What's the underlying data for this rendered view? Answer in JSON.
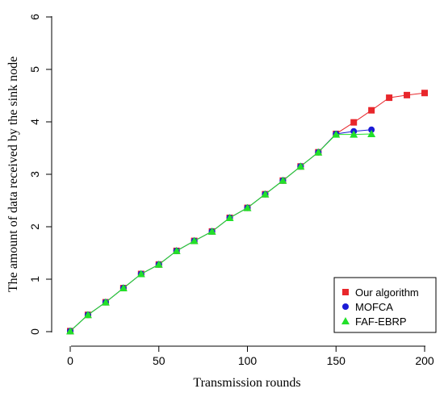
{
  "chart_data": {
    "type": "line",
    "xlabel": "Transmission rounds",
    "ylabel": "The amount of data received by the sink node",
    "xlim": [
      0,
      200
    ],
    "ylim": [
      0,
      6
    ],
    "xticks": [
      "0",
      "50",
      "100",
      "150",
      "200"
    ],
    "yticks": [
      "0",
      "1",
      "2",
      "3",
      "4",
      "5",
      "6"
    ],
    "grid": false,
    "legend_position": "bottom-right",
    "series": [
      {
        "name": "Our algorithm",
        "color": "#e8262b",
        "marker": "square",
        "x": [
          0,
          10,
          20,
          30,
          40,
          50,
          60,
          70,
          80,
          90,
          100,
          110,
          120,
          130,
          140,
          150,
          160,
          170,
          180,
          190,
          200
        ],
        "y": [
          0.01,
          0.32,
          0.56,
          0.83,
          1.1,
          1.28,
          1.54,
          1.73,
          1.91,
          2.17,
          2.36,
          2.62,
          2.88,
          3.15,
          3.42,
          3.77,
          3.99,
          4.22,
          4.46,
          4.51,
          4.55
        ]
      },
      {
        "name": "MOFCA",
        "color": "#1b1bd6",
        "marker": "circle",
        "x": [
          0,
          10,
          20,
          30,
          40,
          50,
          60,
          70,
          80,
          90,
          100,
          110,
          120,
          130,
          140,
          150,
          160,
          170
        ],
        "y": [
          0.01,
          0.32,
          0.56,
          0.83,
          1.1,
          1.28,
          1.54,
          1.73,
          1.91,
          2.17,
          2.36,
          2.62,
          2.88,
          3.15,
          3.42,
          3.77,
          3.82,
          3.85
        ]
      },
      {
        "name": "FAF-EBRP",
        "color": "#22e02a",
        "marker": "triangle",
        "x": [
          0,
          10,
          20,
          30,
          40,
          50,
          60,
          70,
          80,
          90,
          100,
          110,
          120,
          130,
          140,
          150,
          160,
          170
        ],
        "y": [
          0.01,
          0.32,
          0.56,
          0.83,
          1.1,
          1.28,
          1.54,
          1.73,
          1.91,
          2.17,
          2.36,
          2.62,
          2.88,
          3.15,
          3.42,
          3.76,
          3.76,
          3.77
        ]
      }
    ]
  }
}
